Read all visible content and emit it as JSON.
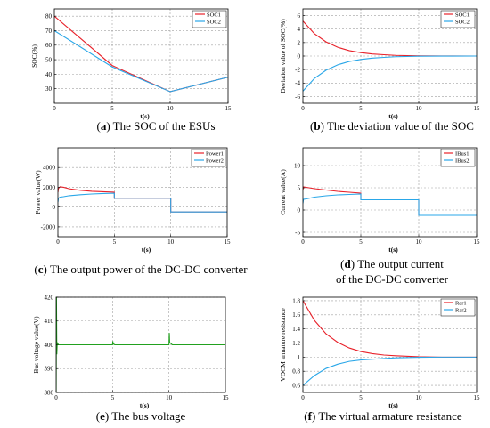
{
  "chart_data": [
    {
      "id": "a",
      "type": "line",
      "caption_letter": "a",
      "caption_text": " The SOC of the ESUs",
      "xlabel": "t(s)",
      "ylabel": "SOC(%)",
      "xlim": [
        0,
        15
      ],
      "ylim": [
        20,
        85
      ],
      "xticks": [
        0,
        5,
        10,
        15
      ],
      "yticks": [
        30,
        40,
        50,
        60,
        70,
        80
      ],
      "grid": true,
      "legend": "top-right",
      "series": [
        {
          "name": "SOC1",
          "color": "#e8212a",
          "x": [
            0,
            5,
            10,
            15
          ],
          "y": [
            80,
            46,
            28,
            38
          ]
        },
        {
          "name": "SOC2",
          "color": "#2aa7e8",
          "x": [
            0,
            5,
            10,
            15
          ],
          "y": [
            70,
            45,
            28,
            38
          ]
        }
      ]
    },
    {
      "id": "b",
      "type": "line",
      "caption_letter": "b",
      "caption_text": " The deviation value of the SOC",
      "xlabel": "t(s)",
      "ylabel": "Deviation value of SOC(%)",
      "xlim": [
        0,
        15
      ],
      "ylim": [
        -7,
        7
      ],
      "xticks": [
        0,
        5,
        10,
        15
      ],
      "yticks": [
        -6,
        -4,
        -2,
        0,
        2,
        4,
        6
      ],
      "grid": true,
      "legend": "top-right",
      "series": [
        {
          "name": "SOC1",
          "color": "#e8212a",
          "x": [
            0,
            1,
            2,
            3,
            4,
            5,
            6,
            7,
            8,
            10,
            12,
            15
          ],
          "y": [
            5.2,
            3.3,
            2.1,
            1.3,
            0.8,
            0.5,
            0.3,
            0.2,
            0.1,
            0.03,
            0.01,
            0
          ]
        },
        {
          "name": "SOC2",
          "color": "#2aa7e8",
          "x": [
            0,
            1,
            2,
            3,
            4,
            5,
            6,
            7,
            8,
            10,
            12,
            15
          ],
          "y": [
            -5.2,
            -3.3,
            -2.1,
            -1.3,
            -0.8,
            -0.5,
            -0.3,
            -0.2,
            -0.1,
            -0.03,
            -0.01,
            0
          ]
        }
      ]
    },
    {
      "id": "c",
      "type": "line",
      "caption_letter": "c",
      "caption_text": " The output power of the DC-DC converter",
      "xlabel": "t(s)",
      "ylabel": "Power value(W)",
      "xlim": [
        0,
        15
      ],
      "ylim": [
        -3000,
        6000
      ],
      "xticks": [
        0,
        5,
        10,
        15
      ],
      "yticks": [
        -2000,
        0,
        2000,
        4000
      ],
      "grid": true,
      "legend": "top-right",
      "series": [
        {
          "name": "Power1",
          "color": "#e8212a",
          "x": [
            0,
            0.05,
            0.2,
            0.5,
            1,
            2,
            3,
            4,
            5,
            5.001,
            10,
            10.001,
            15
          ],
          "y": [
            1500,
            1900,
            2050,
            2000,
            1850,
            1700,
            1600,
            1550,
            1500,
            900,
            900,
            -500,
            -500
          ]
        },
        {
          "name": "Power2",
          "color": "#2aa7e8",
          "x": [
            0,
            0.05,
            0.2,
            0.5,
            1,
            2,
            3,
            4,
            5,
            5.001,
            10,
            10.001,
            15
          ],
          "y": [
            500,
            900,
            1000,
            1050,
            1150,
            1250,
            1320,
            1370,
            1400,
            900,
            900,
            -500,
            -500
          ]
        }
      ]
    },
    {
      "id": "d",
      "type": "line",
      "caption_letter": "d",
      "caption_text": " The output current",
      "caption_text2": "of the DC-DC converter",
      "xlabel": "t(s)",
      "ylabel": "Current value(A)",
      "xlim": [
        0,
        15
      ],
      "ylim": [
        -6,
        14
      ],
      "xticks": [
        0,
        5,
        10,
        15
      ],
      "yticks": [
        -5,
        0,
        5,
        10
      ],
      "grid": true,
      "legend": "top-right",
      "series": [
        {
          "name": "IBus1",
          "color": "#e8212a",
          "x": [
            0,
            0.05,
            0.3,
            1,
            2,
            3,
            4,
            5,
            5.001,
            10,
            10.001,
            15
          ],
          "y": [
            4.5,
            5.2,
            5.1,
            4.8,
            4.5,
            4.2,
            4.0,
            3.8,
            2.3,
            2.3,
            -1.2,
            -1.2
          ]
        },
        {
          "name": "IBus2",
          "color": "#2aa7e8",
          "x": [
            0,
            0.05,
            0.3,
            1,
            2,
            3,
            4,
            5,
            5.001,
            10,
            10.001,
            15
          ],
          "y": [
            1.5,
            2.4,
            2.5,
            2.9,
            3.2,
            3.4,
            3.5,
            3.6,
            2.3,
            2.3,
            -1.2,
            -1.2
          ]
        }
      ]
    },
    {
      "id": "e",
      "type": "line",
      "caption_letter": "e",
      "caption_text": " The bus voltage",
      "xlabel": "t(s)",
      "ylabel": "Bus voltage value(V)",
      "xlim": [
        0,
        15
      ],
      "ylim": [
        380,
        420
      ],
      "xticks": [
        0,
        5,
        10,
        15
      ],
      "yticks": [
        380,
        390,
        400,
        410,
        420
      ],
      "grid": true,
      "legend": "none",
      "series": [
        {
          "name": "",
          "color": "#22a11f",
          "x": [
            0,
            0.03,
            0.06,
            0.1,
            0.2,
            5,
            5.02,
            5.05,
            5.2,
            10,
            10.03,
            10.06,
            10.3,
            15
          ],
          "y": [
            380,
            420,
            396,
            401,
            400,
            400,
            401.5,
            400.5,
            400,
            400,
            405,
            401,
            400,
            400
          ]
        }
      ]
    },
    {
      "id": "f",
      "type": "line",
      "caption_letter": "f",
      "caption_text": " The virtual armature resistance",
      "xlabel": "t(s)",
      "ylabel": "VDCM armature resistance",
      "xlim": [
        0,
        15
      ],
      "ylim": [
        0.5,
        1.85
      ],
      "xticks": [
        0,
        5,
        10,
        15
      ],
      "yticks": [
        0.6,
        0.8,
        1,
        1.2,
        1.4,
        1.6,
        1.8
      ],
      "grid": true,
      "legend": "top-right",
      "series": [
        {
          "name": "Rar1",
          "color": "#e8212a",
          "x": [
            0,
            1,
            2,
            3,
            4,
            5,
            6,
            7,
            8,
            10,
            12,
            15
          ],
          "y": [
            1.8,
            1.52,
            1.33,
            1.21,
            1.13,
            1.08,
            1.05,
            1.03,
            1.02,
            1.005,
            1.0,
            1.0
          ]
        },
        {
          "name": "Rar2",
          "color": "#2aa7e8",
          "x": [
            0,
            1,
            2,
            3,
            4,
            5,
            6,
            7,
            8,
            10,
            12,
            15
          ],
          "y": [
            0.6,
            0.74,
            0.84,
            0.9,
            0.94,
            0.96,
            0.97,
            0.98,
            0.99,
            0.997,
            1.0,
            1.0
          ]
        }
      ]
    }
  ]
}
